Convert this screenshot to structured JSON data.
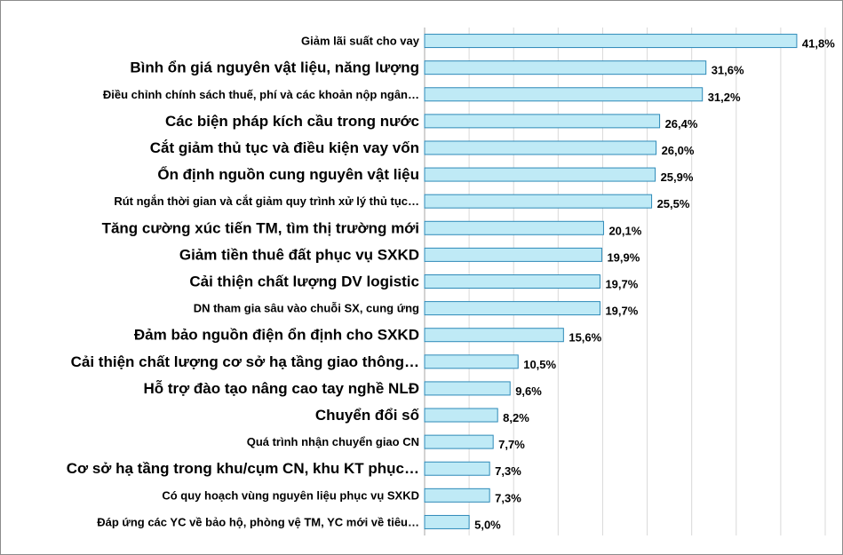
{
  "chart_data": {
    "type": "bar",
    "orientation": "horizontal",
    "title": "",
    "xlabel": "",
    "ylabel": "",
    "xlim": [
      0,
      45
    ],
    "grid": true,
    "legend": "none",
    "colors": {
      "bar_fill": "#bfeaf6",
      "bar_stroke": "#2e8ab8",
      "grid": "#d9d9d9",
      "axis": "#a6a6a6"
    },
    "categories": [
      "Giảm lãi suất cho vay",
      "Bình ổn giá nguyên vật liệu, năng lượng",
      "Điều chỉnh chính sách thuế, phí và các khoản nộp ngân…",
      "Các biện pháp kích cầu trong nước",
      "Cắt giảm thủ tục và điều kiện vay vốn",
      "Ổn định nguồn cung nguyên vật liệu",
      "Rút ngắn thời gian và cắt giảm quy trình xử lý thủ tục…",
      "Tăng cường xúc tiến TM, tìm thị trường mới",
      "Giảm tiền thuê đất phục vụ SXKD",
      "Cải thiện chất lượng DV logistic",
      "DN tham gia sâu vào chuỗi SX, cung ứng",
      "Đảm bảo nguồn điện ổn định cho SXKD",
      "Cải thiện chất lượng cơ sở hạ tầng giao thông…",
      "Hỗ trợ đào tạo nâng cao tay nghề NLĐ",
      "Chuyển đổi số",
      "Quá trình nhận chuyển giao CN",
      "Cơ sở hạ tầng trong khu/cụm CN, khu KT phục…",
      "Có quy hoạch vùng nguyên liệu phục vụ SXKD",
      "Đáp ứng các YC về bảo hộ, phòng vệ TM, YC mới về tiêu…"
    ],
    "label_style": [
      "small",
      "large",
      "small",
      "large",
      "large",
      "large",
      "small",
      "large",
      "large",
      "large",
      "small",
      "large",
      "large",
      "large",
      "large",
      "small",
      "large",
      "small",
      "small"
    ],
    "values": [
      41.8,
      31.6,
      31.2,
      26.4,
      26.0,
      25.9,
      25.5,
      20.1,
      19.9,
      19.7,
      19.7,
      15.6,
      10.5,
      9.6,
      8.2,
      7.7,
      7.3,
      7.3,
      5.0
    ],
    "data_labels": [
      "41,8%",
      "31,6%",
      "31,2%",
      "26,4%",
      "26,0%",
      "25,9%",
      "25,5%",
      "20,1%",
      "19,9%",
      "19,7%",
      "19,7%",
      "15,6%",
      "10,5%",
      "9,6%",
      "8,2%",
      "7,7%",
      "7,3%",
      "7,3%",
      "5,0%"
    ]
  }
}
